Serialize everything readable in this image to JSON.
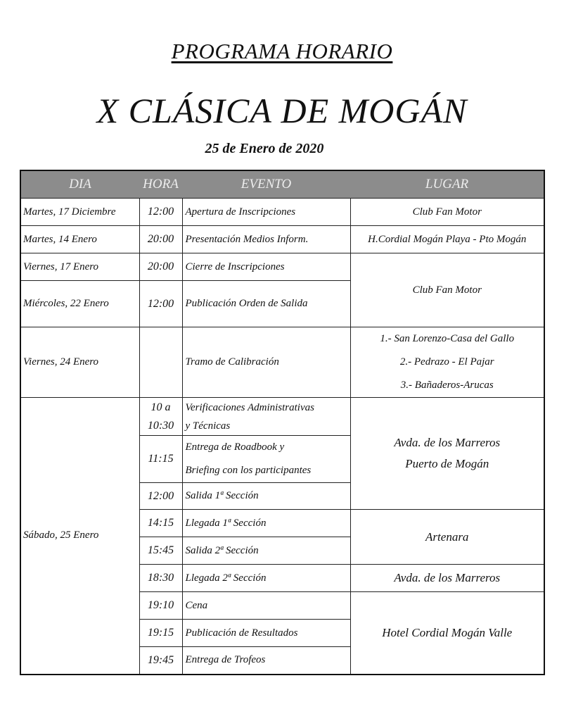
{
  "header": {
    "pre_title": "PROGRAMA  HORARIO",
    "title": "X CLÁSICA DE MOGÁN",
    "date": "25 de Enero de 2020"
  },
  "table": {
    "columns": [
      "DIA",
      "HORA",
      "EVENTO",
      "LUGAR"
    ],
    "header_bg": "#8c8c8c",
    "rows": [
      {
        "dia": "Martes, 17 Diciembre",
        "hora": "12:00",
        "evento": "Apertura de Inscripciones",
        "lugar": "Club Fan Motor"
      },
      {
        "dia": "Martes, 14 Enero",
        "hora": "20:00",
        "evento": "Presentación Medios Inform.",
        "lugar": "H.Cordial Mogán Playa - Pto Mogán"
      },
      {
        "dia": "Viernes, 17 Enero",
        "hora": "20:00",
        "evento": "Cierre de Inscripciones",
        "lugar": "Club Fan Motor"
      },
      {
        "dia": "Miércoles, 22 Enero",
        "hora": "12:00",
        "evento": "Publicación Orden de Salida"
      },
      {
        "dia": "Viernes, 24 Enero",
        "hora": "",
        "evento": "Tramo de Calibración",
        "lugar": [
          "1.- San Lorenzo-Casa del Gallo",
          "2.- Pedrazo - El Pajar",
          "3.- Bañaderos-Arucas"
        ]
      }
    ],
    "saturday": {
      "dia": "Sábado, 25 Enero",
      "rows": [
        {
          "hora": [
            "10 a",
            "10:30"
          ],
          "evento": [
            "Verificaciones Administrativas",
            "y Técnicas"
          ],
          "lugar": [
            "Avda. de los Marreros",
            "Puerto de Mogán"
          ]
        },
        {
          "hora": "11:15",
          "evento": [
            "Entrega de Roadbook y",
            "Briefing con los participantes"
          ]
        },
        {
          "hora": "12:00",
          "evento": "Salida 1ª Sección"
        },
        {
          "hora": "14:15",
          "evento": "Llegada 1ª Sección",
          "lugar": "Artenara"
        },
        {
          "hora": "15:45",
          "evento": "Salida 2ª Sección"
        },
        {
          "hora": "18:30",
          "evento": "Llegada 2ª Sección",
          "lugar": "Avda. de los Marreros"
        },
        {
          "hora": "19:10",
          "evento": "Cena",
          "lugar": "Hotel Cordial  Mogán Valle"
        },
        {
          "hora": "19:15",
          "evento": "Publicación de Resultados"
        },
        {
          "hora": "19:45",
          "evento": "Entrega de Trofeos"
        }
      ]
    }
  }
}
